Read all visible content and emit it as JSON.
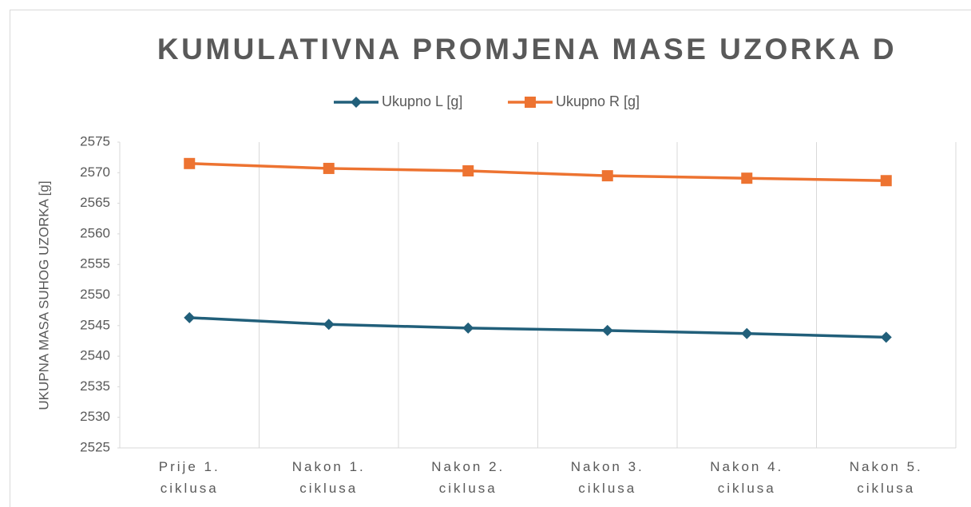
{
  "chart_data": {
    "type": "line",
    "title": "KUMULATIVNA PROMJENA MASE UZORKA D",
    "y_label": "UKUPNA MASA SUHOG UZORKA [g]",
    "categories": [
      "Prije 1. ciklusa",
      "Nakon 1. ciklusa",
      "Nakon 2. ciklusa",
      "Nakon 3. ciklusa",
      "Nakon 4. ciklusa",
      "Nakon 5. ciklusa"
    ],
    "series": [
      {
        "name": "Ukupno L [g]",
        "color": "#215f7a",
        "marker": "diamond",
        "values": [
          2546.3,
          2545.2,
          2544.6,
          2544.2,
          2543.7,
          2543.1
        ]
      },
      {
        "name": "Ukupno R [g]",
        "color": "#ed7331",
        "marker": "square",
        "values": [
          2571.5,
          2570.7,
          2570.3,
          2569.5,
          2569.1,
          2568.7
        ]
      }
    ],
    "ylim": [
      2525,
      2575
    ],
    "yticks": [
      2525,
      2530,
      2535,
      2540,
      2545,
      2550,
      2555,
      2560,
      2565,
      2570,
      2575
    ],
    "legend": "top"
  }
}
